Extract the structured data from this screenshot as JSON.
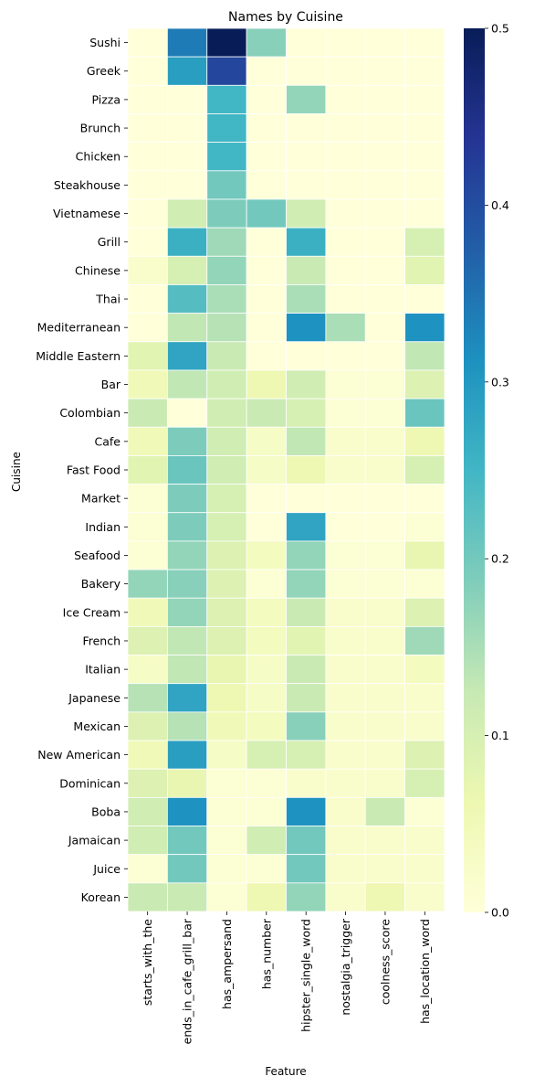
{
  "chart_data": {
    "type": "heatmap",
    "title": "Names by Cuisine",
    "xlabel": "Feature",
    "ylabel": "Cuisine",
    "x_categories": [
      "starts_with_the",
      "ends_in_cafe_grill_bar",
      "has_ampersand",
      "has_number",
      "hipster_single_word",
      "nostalgia_trigger",
      "coolness_score",
      "has_location_word"
    ],
    "y_categories": [
      "Sushi",
      "Greek",
      "Pizza",
      "Brunch",
      "Chicken",
      "Steakhouse",
      "Vietnamese",
      "Grill",
      "Chinese",
      "Thai",
      "Mediterranean",
      "Middle Eastern",
      "Bar",
      "Colombian",
      "Cafe",
      "Fast Food",
      "Market",
      "Indian",
      "Seafood",
      "Bakery",
      "Ice Cream",
      "French",
      "Italian",
      "Japanese",
      "Mexican",
      "New American",
      "Dominican",
      "Boba",
      "Jamaican",
      "Juice",
      "Korean"
    ],
    "values": [
      [
        0.0,
        0.34,
        0.5,
        0.18,
        0.0,
        0.0,
        0.0,
        0.0
      ],
      [
        0.0,
        0.29,
        0.41,
        0.0,
        0.0,
        0.0,
        0.0,
        0.0
      ],
      [
        0.0,
        0.0,
        0.25,
        0.0,
        0.17,
        0.0,
        0.0,
        0.0
      ],
      [
        0.0,
        0.0,
        0.25,
        0.0,
        0.0,
        0.0,
        0.0,
        0.0
      ],
      [
        0.0,
        0.0,
        0.25,
        0.0,
        0.0,
        0.0,
        0.0,
        0.0
      ],
      [
        0.0,
        0.0,
        0.2,
        0.0,
        0.0,
        0.0,
        0.0,
        0.0
      ],
      [
        0.0,
        0.11,
        0.19,
        0.2,
        0.11,
        0.0,
        0.0,
        0.0
      ],
      [
        0.0,
        0.26,
        0.16,
        0.0,
        0.26,
        0.0,
        0.0,
        0.1
      ],
      [
        0.02,
        0.1,
        0.17,
        0.0,
        0.12,
        0.0,
        0.0,
        0.08
      ],
      [
        0.0,
        0.23,
        0.15,
        0.0,
        0.15,
        0.0,
        0.0,
        0.0
      ],
      [
        0.0,
        0.13,
        0.14,
        0.0,
        0.31,
        0.15,
        0.0,
        0.31
      ],
      [
        0.08,
        0.28,
        0.12,
        0.0,
        0.0,
        0.0,
        0.0,
        0.13
      ],
      [
        0.05,
        0.13,
        0.11,
        0.06,
        0.11,
        0.01,
        0.01,
        0.09
      ],
      [
        0.12,
        0.0,
        0.11,
        0.12,
        0.1,
        0.01,
        0.01,
        0.21
      ],
      [
        0.05,
        0.19,
        0.11,
        0.03,
        0.13,
        0.02,
        0.02,
        0.06
      ],
      [
        0.08,
        0.21,
        0.11,
        0.03,
        0.06,
        0.02,
        0.02,
        0.1
      ],
      [
        0.01,
        0.19,
        0.1,
        0.0,
        0.0,
        0.0,
        0.0,
        0.0
      ],
      [
        0.01,
        0.19,
        0.1,
        0.0,
        0.28,
        0.0,
        0.0,
        0.01
      ],
      [
        0.01,
        0.17,
        0.09,
        0.04,
        0.17,
        0.01,
        0.01,
        0.07
      ],
      [
        0.17,
        0.18,
        0.09,
        0.01,
        0.17,
        0.01,
        0.01,
        0.01
      ],
      [
        0.05,
        0.17,
        0.09,
        0.04,
        0.12,
        0.02,
        0.02,
        0.09
      ],
      [
        0.09,
        0.13,
        0.09,
        0.04,
        0.08,
        0.02,
        0.02,
        0.16
      ],
      [
        0.03,
        0.13,
        0.07,
        0.03,
        0.12,
        0.02,
        0.02,
        0.04
      ],
      [
        0.14,
        0.28,
        0.06,
        0.03,
        0.12,
        0.02,
        0.02,
        0.02
      ],
      [
        0.09,
        0.14,
        0.05,
        0.04,
        0.18,
        0.02,
        0.02,
        0.02
      ],
      [
        0.05,
        0.29,
        0.03,
        0.1,
        0.1,
        0.02,
        0.02,
        0.09
      ],
      [
        0.09,
        0.07,
        0.01,
        0.01,
        0.02,
        0.02,
        0.02,
        0.1
      ],
      [
        0.11,
        0.31,
        0.01,
        0.01,
        0.31,
        0.02,
        0.12,
        0.01
      ],
      [
        0.11,
        0.2,
        0.01,
        0.11,
        0.2,
        0.02,
        0.02,
        0.02
      ],
      [
        0.01,
        0.2,
        0.01,
        0.01,
        0.2,
        0.02,
        0.02,
        0.02
      ],
      [
        0.12,
        0.12,
        0.01,
        0.06,
        0.17,
        0.02,
        0.06,
        0.02
      ]
    ],
    "colorbar": {
      "colormap": "YlGnBu",
      "min": 0.0,
      "max": 0.5,
      "ticks": [
        0.0,
        0.1,
        0.2,
        0.3,
        0.4,
        0.5
      ],
      "tick_labels": [
        "0.0",
        "0.1",
        "0.2",
        "0.3",
        "0.4",
        "0.5"
      ]
    },
    "cell_border_color": "#ffffff",
    "grid": false
  }
}
